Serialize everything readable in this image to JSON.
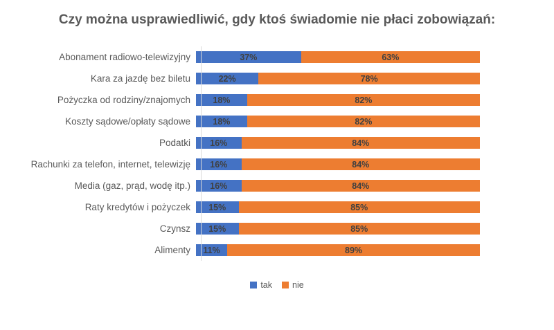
{
  "title": "Czy można usprawiedliwić, gdy ktoś świadomie nie płaci zobowiązań:",
  "colors": {
    "tak": "#4472C4",
    "nie": "#ED7D31",
    "title_text": "#595959",
    "category_text": "#595959",
    "value_text": "#404040",
    "axis_line": "#D9D9D9"
  },
  "legend": {
    "tak_label": "tak",
    "nie_label": "nie",
    "position": "bottom"
  },
  "chart_data": {
    "type": "bar",
    "orientation": "horizontal",
    "stacked": true,
    "title": "Czy można usprawiedliwić, gdy ktoś świadomie nie płaci zobowiązań:",
    "categories": [
      "Abonament radiowo-telewizyjny",
      "Kara za jazdę bez biletu",
      "Pożyczka od rodziny/znajomych",
      "Koszty sądowe/opłaty sądowe",
      "Podatki",
      "Rachunki za telefon, internet, telewizję",
      "Media (gaz, prąd, wodę itp.)",
      "Raty kredytów i pożyczek",
      "Czynsz",
      "Alimenty"
    ],
    "series": [
      {
        "name": "tak",
        "color": "#4472C4",
        "values": [
          37,
          22,
          18,
          18,
          16,
          16,
          16,
          15,
          15,
          11
        ]
      },
      {
        "name": "nie",
        "color": "#ED7D31",
        "values": [
          63,
          78,
          82,
          82,
          84,
          84,
          84,
          85,
          85,
          89
        ]
      }
    ],
    "value_suffix": "%",
    "data_labels": true,
    "xlim": [
      0,
      100
    ],
    "grid": false,
    "legend_position": "bottom"
  }
}
